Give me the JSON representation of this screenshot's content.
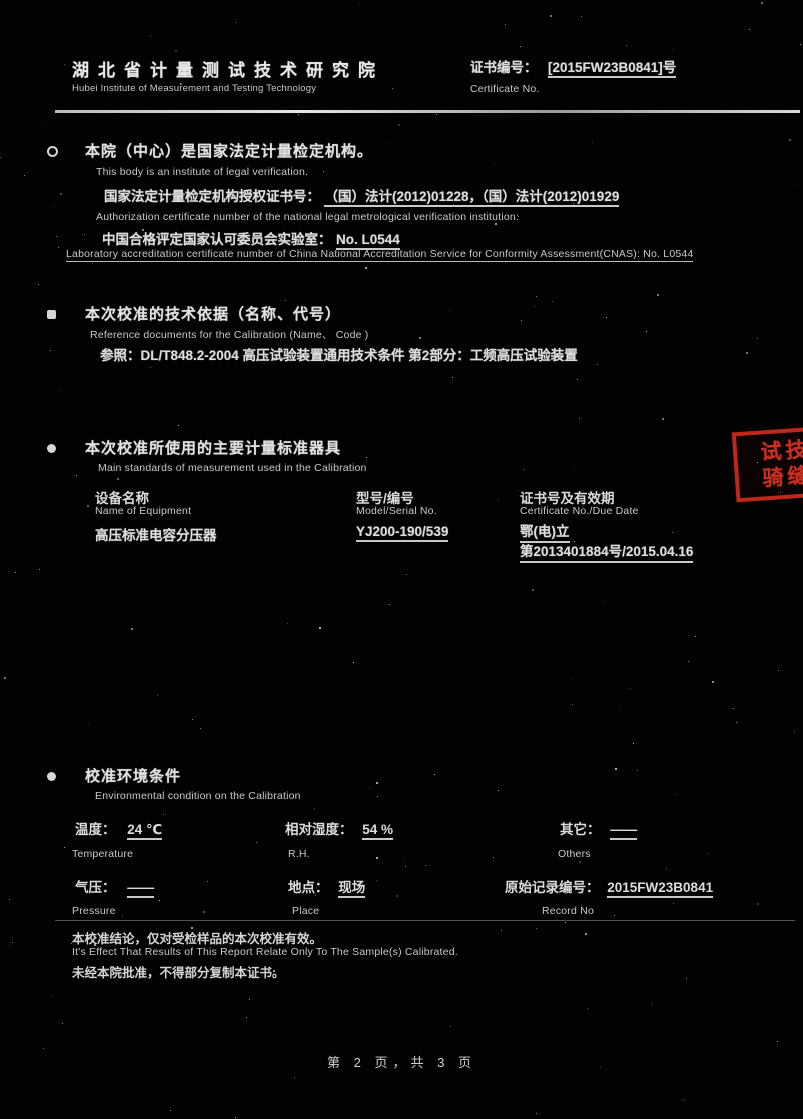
{
  "header": {
    "org_zh": "湖北省计量测试技术研究院",
    "org_en": "Hubei Institute of Measurement and Testing Technology",
    "cert_no_label_zh": "证书编号：",
    "cert_no_value": "[2015FW23B0841]号",
    "cert_no_label_en": "Certificate No."
  },
  "section1": {
    "title_zh": "本院（中心）是国家法定计量检定机构。",
    "title_en": "This body is an institute of legal verification.",
    "auth_label_zh": "国家法定计量检定机构授权证书号：",
    "auth_value": "（国）法计(2012)01228，（国）法计(2012)01929",
    "auth_en": "Authorization certificate number of the national legal metrological verification institution:",
    "cnas_label_zh": "中国合格评定国家认可委员会实验室：",
    "cnas_value": "No. L0544",
    "cnas_en": "Laboratory accreditation certificate number of China National Accreditation Service for Conformity Assessment(CNAS): No. L0544"
  },
  "section2": {
    "title_zh": "本次校准的技术依据（名称、代号）",
    "title_en": "Reference documents for the Calibration (Name、 Code )",
    "reference": "参照：DL/T848.2-2004  高压试验装置通用技术条件  第2部分：工频高压试验装置"
  },
  "section3": {
    "title_zh": "本次校准所使用的主要计量标准器具",
    "title_en": "Main standards of measurement used in the Calibration",
    "columns": [
      {
        "zh": "设备名称",
        "en": "Name of Equipment"
      },
      {
        "zh": "型号/编号",
        "en": "Model/Serial No."
      },
      {
        "zh": "证书号及有效期",
        "en": "Certificate No./Due Date"
      }
    ],
    "row": {
      "equipment": "高压标准电容分压器",
      "model": "YJ200-190/539",
      "cert_line1": "鄂(电)立",
      "cert_line2": "第2013401884号/2015.04.16"
    }
  },
  "stamp": {
    "row1": "试技术",
    "row2": "骑缝章",
    "color": "#d93425"
  },
  "section4": {
    "title_zh": "校准环境条件",
    "title_en": "Environmental condition on the Calibration",
    "temperature": {
      "label_zh": "温度：",
      "value": "24 ℃",
      "label_en": "Temperature"
    },
    "humidity": {
      "label_zh": "相对湿度：",
      "value": "54 %",
      "label_en": "R.H."
    },
    "others": {
      "label_zh": "其它：",
      "value": "——",
      "label_en": "Others"
    },
    "pressure": {
      "label_zh": "气压：",
      "value": "——",
      "label_en": "Pressure"
    },
    "place": {
      "label_zh": "地点：",
      "value": "现场",
      "label_en": "Place"
    },
    "record": {
      "label_zh": "原始记录编号：",
      "value": "2015FW23B0841",
      "label_en": "Record No"
    }
  },
  "notes": {
    "line1_zh": "本校准结论，仅对受检样品的本次校准有效。",
    "line1_en": "It's Effect That Results of This Report Relate Only To The Sample(s) Calibrated.",
    "line2_zh": "未经本院批准，不得部分复制本证书。"
  },
  "footer": {
    "page_text": "第 2 页，共 3 页"
  }
}
